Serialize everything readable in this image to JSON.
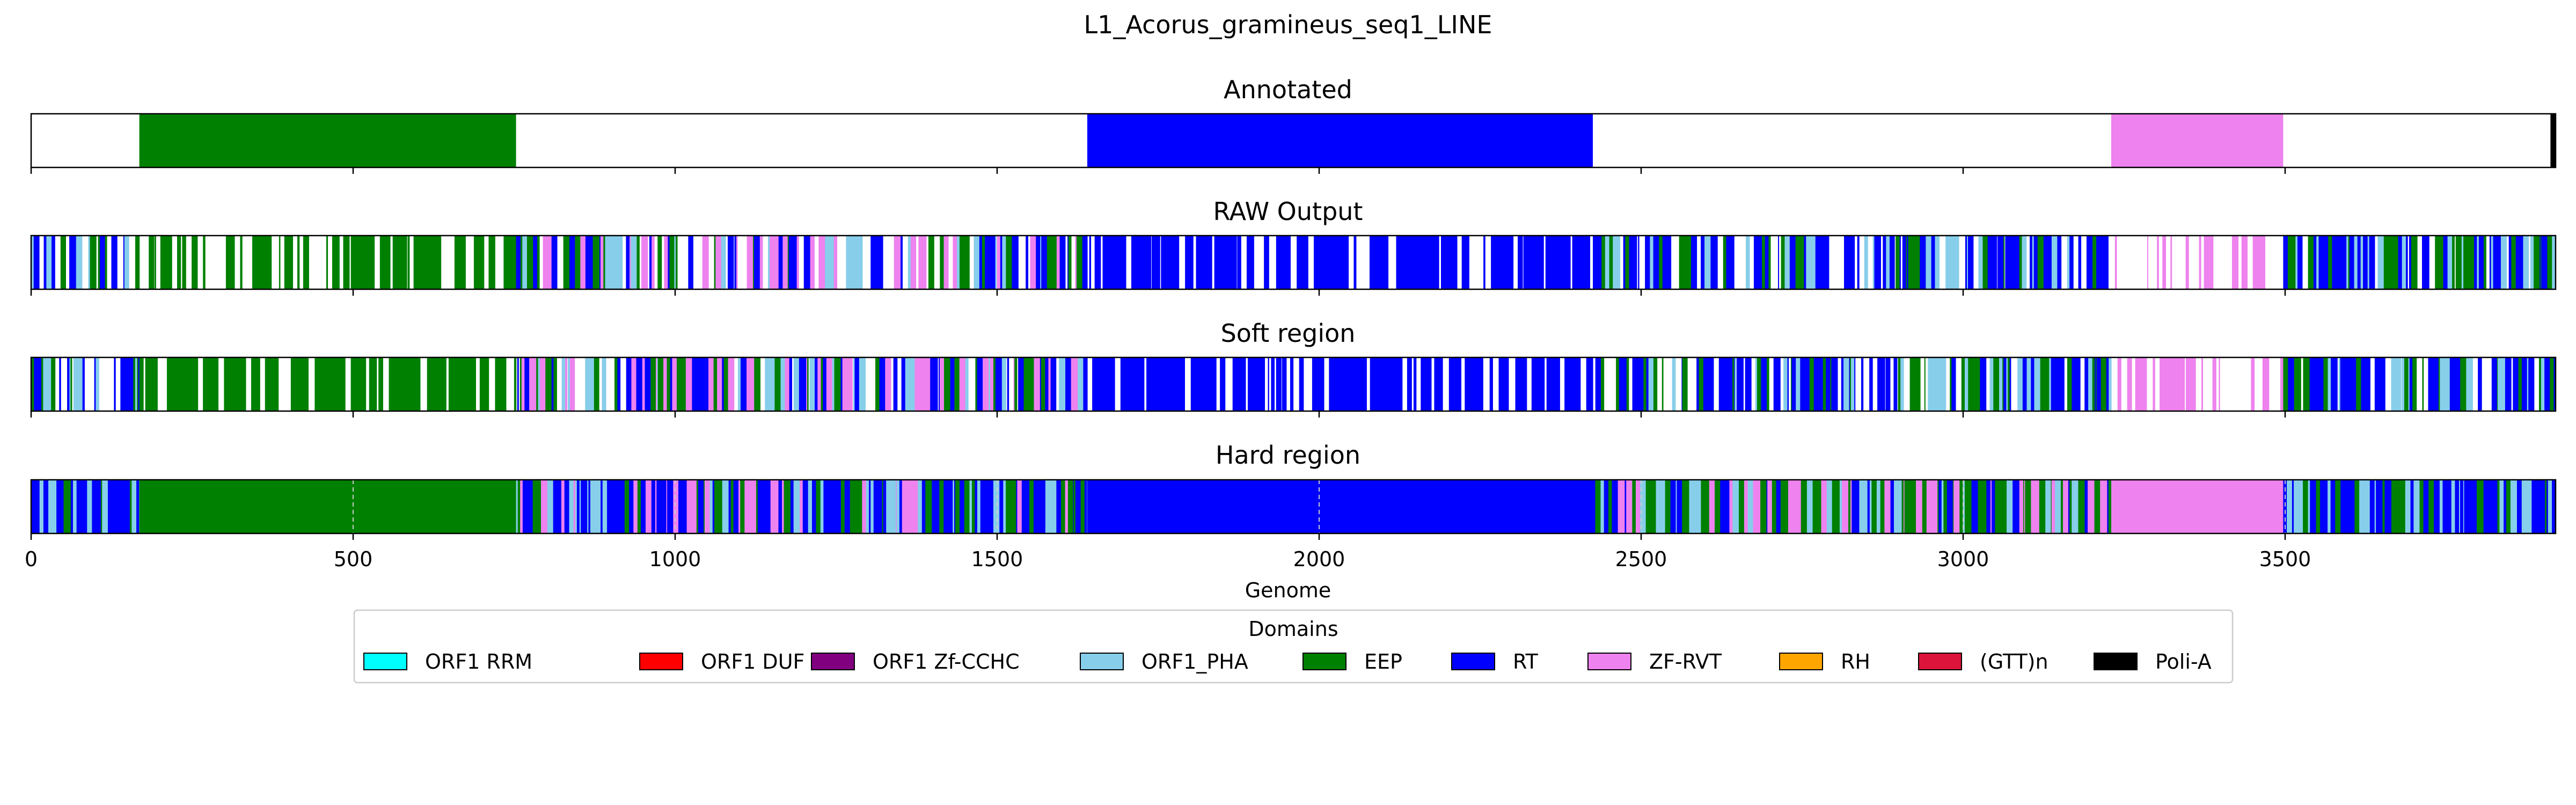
{
  "colors": {
    "ORF1 RRM": "#00ffff",
    "ORF1 DUF": "#ff0000",
    "ORF1 Zf-CCHC": "#800080",
    "ORF1_PHA": "#87ceeb",
    "EEP": "#008000",
    "RT": "#0000ff",
    "ZF-RVT": "#ee82ee",
    "RH": "#ffa500",
    "(GTT)n": "#dc143c",
    "Poli-A": "#000000"
  },
  "chart_data": {
    "type": "bar",
    "title": "L1_Acorus_gramineus_seq1_LINE",
    "xlabel": "Genome",
    "xlim": [
      0,
      3920
    ],
    "xticks": [
      0,
      500,
      1000,
      1500,
      2000,
      2500,
      3000,
      3500
    ],
    "legend": {
      "title": "Domains",
      "placement": "bottom-center",
      "entries": [
        "ORF1 RRM",
        "ORF1 DUF",
        "ORF1 Zf-CCHC",
        "ORF1_PHA",
        "EEP",
        "RT",
        "ZF-RVT",
        "RH",
        "(GTT)n",
        "Poli-A"
      ]
    },
    "panels": [
      {
        "title": "Annotated",
        "segments": [
          {
            "domain": "EEP",
            "start": 168,
            "end": 753
          },
          {
            "domain": "RT",
            "start": 1640,
            "end": 2425
          },
          {
            "domain": "ZF-RVT",
            "start": 3230,
            "end": 3497
          },
          {
            "domain": "Poli-A",
            "start": 3912,
            "end": 3920
          }
        ]
      },
      {
        "title": "RAW Output",
        "regions": [
          {
            "start": 0,
            "end": 168,
            "palette": [
              "RT",
              "RT",
              "EEP",
              "ORF1_PHA"
            ],
            "blank": 0.25
          },
          {
            "start": 168,
            "end": 753,
            "palette": [
              "EEP"
            ],
            "blank": 0.35
          },
          {
            "start": 753,
            "end": 1640,
            "palette": [
              "RT",
              "RT",
              "EEP",
              "ZF-RVT",
              "ORF1_PHA"
            ],
            "blank": 0.22
          },
          {
            "start": 1640,
            "end": 2425,
            "palette": [
              "RT"
            ],
            "blank": 0.25
          },
          {
            "start": 2425,
            "end": 3230,
            "palette": [
              "RT",
              "RT",
              "EEP",
              "ORF1_PHA"
            ],
            "blank": 0.22
          },
          {
            "start": 3230,
            "end": 3497,
            "palette": [
              "ZF-RVT"
            ],
            "blank": 0.6
          },
          {
            "start": 3497,
            "end": 3920,
            "palette": [
              "RT",
              "RT",
              "EEP",
              "ORF1_PHA"
            ],
            "blank": 0.2
          }
        ]
      },
      {
        "title": "Soft region",
        "regions": [
          {
            "start": 0,
            "end": 168,
            "palette": [
              "RT",
              "RT",
              "EEP",
              "ORF1_PHA"
            ],
            "blank": 0.25
          },
          {
            "start": 168,
            "end": 753,
            "palette": [
              "EEP"
            ],
            "blank": 0.3
          },
          {
            "start": 753,
            "end": 1640,
            "palette": [
              "RT",
              "RT",
              "EEP",
              "ZF-RVT",
              "ORF1_PHA"
            ],
            "blank": 0.2
          },
          {
            "start": 1640,
            "end": 2425,
            "palette": [
              "RT"
            ],
            "blank": 0.22
          },
          {
            "start": 2425,
            "end": 3230,
            "palette": [
              "RT",
              "RT",
              "EEP",
              "ORF1_PHA"
            ],
            "blank": 0.2
          },
          {
            "start": 3230,
            "end": 3497,
            "palette": [
              "ZF-RVT"
            ],
            "blank": 0.55
          },
          {
            "start": 3497,
            "end": 3920,
            "palette": [
              "RT",
              "RT",
              "EEP",
              "ORF1_PHA"
            ],
            "blank": 0.18
          }
        ]
      },
      {
        "title": "Hard region",
        "regions": [
          {
            "start": 0,
            "end": 168,
            "palette": [
              "RT",
              "RT",
              "EEP",
              "ORF1_PHA"
            ],
            "blank": 0
          },
          {
            "start": 168,
            "end": 753,
            "palette": [
              "EEP"
            ],
            "blank": 0
          },
          {
            "start": 753,
            "end": 1640,
            "palette": [
              "RT",
              "RT",
              "EEP",
              "ZF-RVT",
              "ORF1_PHA"
            ],
            "blank": 0
          },
          {
            "start": 1640,
            "end": 2425,
            "palette": [
              "RT"
            ],
            "blank": 0
          },
          {
            "start": 2425,
            "end": 3230,
            "palette": [
              "RT",
              "EEP",
              "EEP",
              "ZF-RVT",
              "ORF1_PHA"
            ],
            "blank": 0
          },
          {
            "start": 3230,
            "end": 3497,
            "palette": [
              "ZF-RVT"
            ],
            "blank": 0
          },
          {
            "start": 3497,
            "end": 3920,
            "palette": [
              "RT",
              "RT",
              "EEP",
              "ORF1_PHA"
            ],
            "blank": 0
          }
        ]
      }
    ]
  }
}
